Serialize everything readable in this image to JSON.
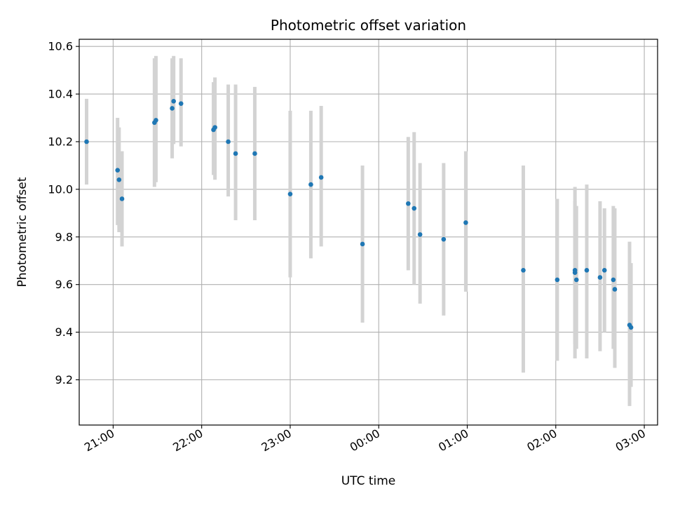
{
  "chart_data": {
    "type": "scatter",
    "title": "Photometric offset variation",
    "xlabel": "UTC time",
    "ylabel": "Photometric offset",
    "x_is_time": true,
    "xlim": [
      "20:37",
      "03:09"
    ],
    "ylim": [
      9.01,
      10.63
    ],
    "x_tick_labels": [
      "21:00",
      "22:00",
      "23:00",
      "00:00",
      "01:00",
      "02:00",
      "03:00"
    ],
    "y_ticks": [
      9.2,
      9.4,
      9.6,
      9.8,
      10.0,
      10.2,
      10.4,
      10.6
    ],
    "y_tick_labels": [
      "9.2",
      "9.4",
      "9.6",
      "9.8",
      "10.0",
      "10.2",
      "10.4",
      "10.6"
    ],
    "grid": true,
    "colors": {
      "point": "#1f77b4",
      "errorbar": "#d3d3d3",
      "grid": "#b0b0b0"
    },
    "points": [
      {
        "t": "20:42",
        "y": 10.2,
        "lo": 10.02,
        "hi": 10.38
      },
      {
        "t": "21:03",
        "y": 10.08,
        "lo": 9.85,
        "hi": 10.3
      },
      {
        "t": "21:04",
        "y": 10.04,
        "lo": 9.82,
        "hi": 10.26
      },
      {
        "t": "21:06",
        "y": 9.96,
        "lo": 9.76,
        "hi": 10.16
      },
      {
        "t": "21:28",
        "y": 10.28,
        "lo": 10.01,
        "hi": 10.55
      },
      {
        "t": "21:29",
        "y": 10.29,
        "lo": 10.03,
        "hi": 10.56
      },
      {
        "t": "21:40",
        "y": 10.34,
        "lo": 10.13,
        "hi": 10.55
      },
      {
        "t": "21:41",
        "y": 10.37,
        "lo": 10.19,
        "hi": 10.56
      },
      {
        "t": "21:46",
        "y": 10.36,
        "lo": 10.18,
        "hi": 10.55
      },
      {
        "t": "22:08",
        "y": 10.25,
        "lo": 10.06,
        "hi": 10.45
      },
      {
        "t": "22:09",
        "y": 10.26,
        "lo": 10.04,
        "hi": 10.47
      },
      {
        "t": "22:18",
        "y": 10.2,
        "lo": 9.97,
        "hi": 10.44
      },
      {
        "t": "22:23",
        "y": 10.15,
        "lo": 9.87,
        "hi": 10.44
      },
      {
        "t": "22:36",
        "y": 10.15,
        "lo": 9.87,
        "hi": 10.43
      },
      {
        "t": "23:00",
        "y": 9.98,
        "lo": 9.63,
        "hi": 10.33
      },
      {
        "t": "23:14",
        "y": 10.02,
        "lo": 9.71,
        "hi": 10.33
      },
      {
        "t": "23:21",
        "y": 10.05,
        "lo": 9.76,
        "hi": 10.35
      },
      {
        "t": "23:49",
        "y": 9.77,
        "lo": 9.44,
        "hi": 10.1
      },
      {
        "t": "00:20",
        "y": 9.94,
        "lo": 9.66,
        "hi": 10.22
      },
      {
        "t": "00:24",
        "y": 9.92,
        "lo": 9.6,
        "hi": 10.24
      },
      {
        "t": "00:28",
        "y": 9.81,
        "lo": 9.52,
        "hi": 10.11
      },
      {
        "t": "00:44",
        "y": 9.79,
        "lo": 9.47,
        "hi": 10.11
      },
      {
        "t": "00:59",
        "y": 9.86,
        "lo": 9.57,
        "hi": 10.16
      },
      {
        "t": "01:38",
        "y": 9.66,
        "lo": 9.23,
        "hi": 10.1
      },
      {
        "t": "02:01",
        "y": 9.62,
        "lo": 9.28,
        "hi": 9.96
      },
      {
        "t": "02:13",
        "y": 9.65,
        "lo": 9.29,
        "hi": 10.01
      },
      {
        "t": "02:13",
        "y": 9.66,
        "lo": 9.35,
        "hi": 9.95
      },
      {
        "t": "02:14",
        "y": 9.62,
        "lo": 9.33,
        "hi": 9.93
      },
      {
        "t": "02:21",
        "y": 9.66,
        "lo": 9.29,
        "hi": 10.02
      },
      {
        "t": "02:30",
        "y": 9.63,
        "lo": 9.32,
        "hi": 9.95
      },
      {
        "t": "02:33",
        "y": 9.66,
        "lo": 9.4,
        "hi": 9.92
      },
      {
        "t": "02:39",
        "y": 9.62,
        "lo": 9.33,
        "hi": 9.93
      },
      {
        "t": "02:40",
        "y": 9.58,
        "lo": 9.25,
        "hi": 9.92
      },
      {
        "t": "02:50",
        "y": 9.43,
        "lo": 9.09,
        "hi": 9.78
      },
      {
        "t": "02:51",
        "y": 9.42,
        "lo": 9.17,
        "hi": 9.69
      }
    ]
  }
}
